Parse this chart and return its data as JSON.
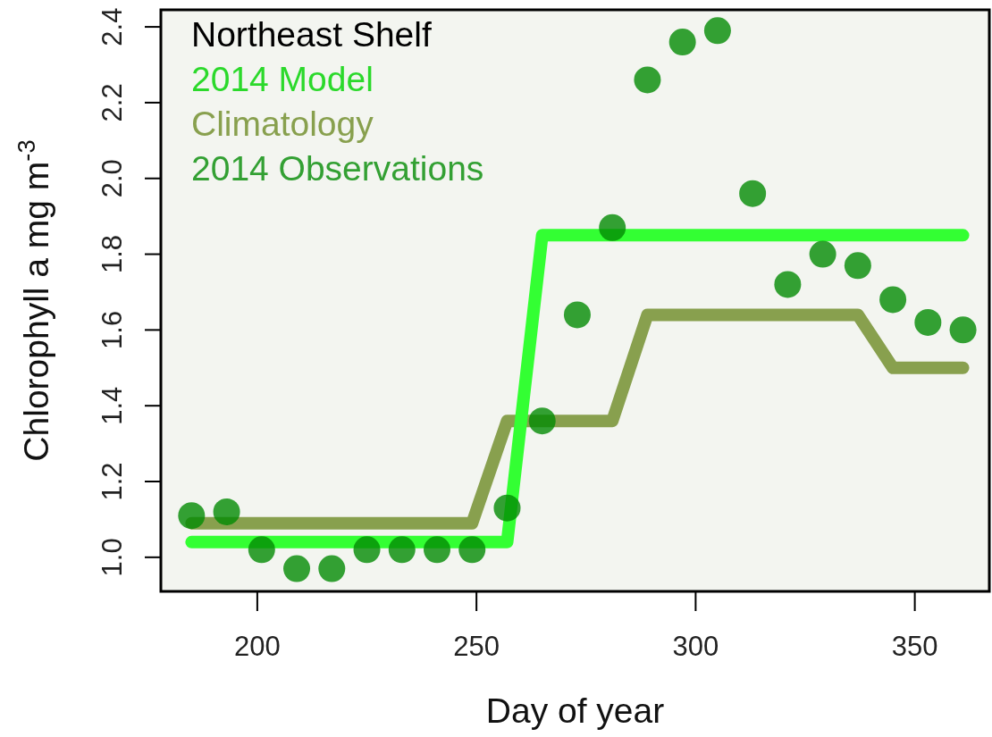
{
  "chart_data": {
    "type": "line",
    "legend_title": "Northeast Shelf",
    "xlabel": "Day of year",
    "ylabel": "Chlorophyll a mg m$^{-3}$",
    "x": [
      185,
      193,
      201,
      209,
      217,
      225,
      233,
      241,
      249,
      257,
      265,
      273,
      281,
      289,
      297,
      305,
      313,
      321,
      329,
      337,
      345,
      353,
      361
    ],
    "xlim": [
      178,
      367
    ],
    "xticks": [
      200,
      250,
      300,
      350
    ],
    "ylim": [
      0.91,
      2.445
    ],
    "yticks": [
      {
        "value": 1,
        "label": "1.0"
      },
      1.2,
      1.4,
      1.6,
      1.8,
      {
        "value": 2,
        "label": "2.0"
      },
      2.2,
      2.4
    ],
    "legend": "top left",
    "series": [
      {
        "name": "2014 Model",
        "type": "line",
        "color": "#33ff33",
        "values": [
          1.04,
          1.04,
          1.04,
          1.04,
          1.04,
          1.04,
          1.04,
          1.04,
          1.04,
          1.04,
          1.85,
          1.85,
          1.85,
          1.85,
          1.85,
          1.85,
          1.85,
          1.85,
          1.85,
          1.85,
          1.85,
          1.85,
          1.85
        ]
      },
      {
        "name": "Climatology",
        "type": "line",
        "color": "#88a04e",
        "values": [
          1.09,
          1.09,
          1.09,
          1.09,
          1.09,
          1.09,
          1.09,
          1.09,
          1.09,
          1.36,
          1.36,
          1.36,
          1.36,
          1.64,
          1.64,
          1.64,
          1.64,
          1.64,
          1.64,
          1.64,
          1.5,
          1.5,
          1.5
        ]
      },
      {
        "name": "2014 Observations",
        "type": "scatter",
        "marker": "circle",
        "color": "#33a033",
        "values": [
          1.11,
          1.12,
          1.02,
          0.97,
          0.97,
          1.02,
          1.02,
          1.02,
          1.02,
          1.13,
          1.36,
          1.64,
          1.87,
          2.26,
          2.36,
          2.39,
          1.96,
          1.72,
          1.8,
          1.77,
          1.68,
          1.62,
          1.6
        ]
      }
    ]
  }
}
